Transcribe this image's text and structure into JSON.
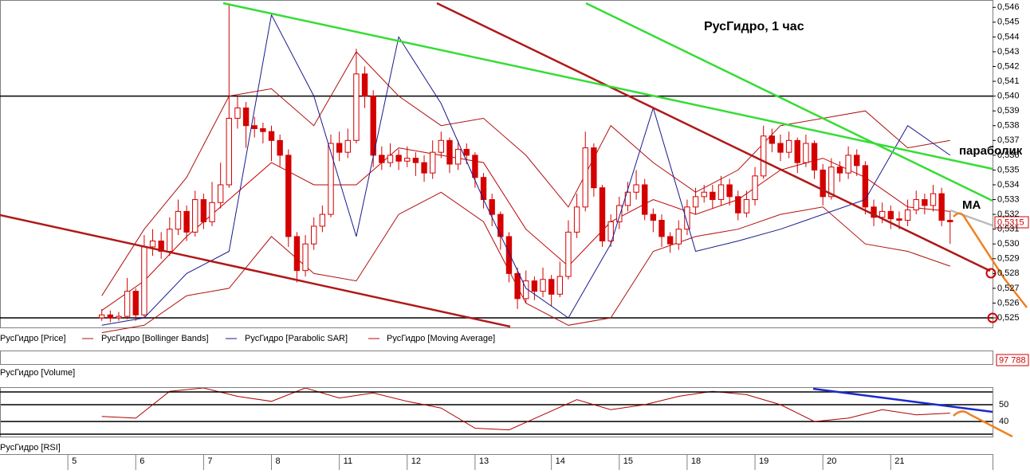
{
  "chart_data": [
    {
      "type": "candlestick",
      "title": "РусГидро,  1 час",
      "name": "РусГидро [Price]",
      "color": "#d40000",
      "annotations": [
        "параболик",
        "МА"
      ],
      "last_price": {
        "value": 0.5315,
        "label": "0,5315"
      },
      "levels": [
        0.54,
        0.525
      ],
      "xlim": [
        -12,
        105
      ],
      "ylim": [
        0.5243,
        0.5465
      ],
      "xticks": [
        {
          "value": -4,
          "label": "5"
        },
        {
          "value": 4,
          "label": "6"
        },
        {
          "value": 12,
          "label": "7"
        },
        {
          "value": 20,
          "label": "8"
        },
        {
          "value": 28,
          "label": "11"
        },
        {
          "value": 36,
          "label": "12"
        },
        {
          "value": 44,
          "label": "13"
        },
        {
          "value": 53,
          "label": "14"
        },
        {
          "value": 61,
          "label": "15"
        },
        {
          "value": 69,
          "label": "18"
        },
        {
          "value": 77,
          "label": "19"
        },
        {
          "value": 85,
          "label": "20"
        },
        {
          "value": 93,
          "label": "21"
        }
      ],
      "yticks": [
        {
          "value": 0.546,
          "label": "0,546"
        },
        {
          "value": 0.545,
          "label": "0,545"
        },
        {
          "value": 0.544,
          "label": "0,544"
        },
        {
          "value": 0.543,
          "label": "0,543"
        },
        {
          "value": 0.542,
          "label": "0,542"
        },
        {
          "value": 0.541,
          "label": "0,541"
        },
        {
          "value": 0.54,
          "label": "0,540"
        },
        {
          "value": 0.539,
          "label": "0,539"
        },
        {
          "value": 0.538,
          "label": "0,538"
        },
        {
          "value": 0.537,
          "label": "0,537"
        },
        {
          "value": 0.536,
          "label": "0,536"
        },
        {
          "value": 0.535,
          "label": "0,535"
        },
        {
          "value": 0.534,
          "label": "0,534"
        },
        {
          "value": 0.533,
          "label": "0,533"
        },
        {
          "value": 0.532,
          "label": "0,532"
        },
        {
          "value": 0.531,
          "label": "0,531"
        },
        {
          "value": 0.53,
          "label": "0,530"
        },
        {
          "value": 0.529,
          "label": "0,529"
        },
        {
          "value": 0.528,
          "label": "0,528"
        },
        {
          "value": 0.527,
          "label": "0,527"
        },
        {
          "value": 0.526,
          "label": "0,526"
        },
        {
          "value": 0.525,
          "label": "0,525"
        }
      ],
      "x": [
        0,
        1,
        2,
        3,
        4,
        5,
        6,
        7,
        8,
        9,
        10,
        11,
        12,
        13,
        14,
        15,
        16,
        17,
        18,
        19,
        20,
        21,
        22,
        23,
        24,
        25,
        26,
        27,
        28,
        29,
        30,
        31,
        32,
        33,
        34,
        35,
        36,
        37,
        38,
        39,
        40,
        41,
        42,
        43,
        44,
        45,
        46,
        47,
        48,
        49,
        50,
        51,
        52,
        53,
        54,
        55,
        56,
        57,
        58,
        59,
        60,
        61,
        62,
        63,
        64,
        65,
        66,
        67,
        68,
        69,
        70,
        71,
        72,
        73,
        74,
        75,
        76,
        77,
        78,
        79,
        80,
        81,
        82,
        83,
        84,
        85,
        86,
        87,
        88,
        89,
        90,
        91,
        92,
        93,
        94,
        95,
        96,
        97,
        98,
        99,
        100
      ],
      "open": [
        0.525,
        0.5252,
        0.525,
        0.5251,
        0.5268,
        0.5252,
        0.5298,
        0.5302,
        0.5295,
        0.531,
        0.5322,
        0.5308,
        0.533,
        0.5315,
        0.5328,
        0.534,
        0.5385,
        0.5392,
        0.538,
        0.5378,
        0.5376,
        0.537,
        0.536,
        0.5305,
        0.5282,
        0.53,
        0.5312,
        0.532,
        0.5368,
        0.5362,
        0.537,
        0.5415,
        0.54,
        0.536,
        0.5355,
        0.536,
        0.5356,
        0.5358,
        0.5355,
        0.5348,
        0.5362,
        0.537,
        0.5354,
        0.5364,
        0.536,
        0.5345,
        0.533,
        0.532,
        0.5305,
        0.528,
        0.5263,
        0.5275,
        0.5268,
        0.5276,
        0.5266,
        0.5278,
        0.5308,
        0.5325,
        0.5365,
        0.5338,
        0.5302,
        0.5315,
        0.5326,
        0.5335,
        0.534,
        0.532,
        0.5316,
        0.5305,
        0.53,
        0.531,
        0.5325,
        0.5332,
        0.5335,
        0.533,
        0.534,
        0.5332,
        0.5321,
        0.533,
        0.5346,
        0.5373,
        0.5368,
        0.5362,
        0.537,
        0.5355,
        0.5368,
        0.535,
        0.5332,
        0.5352,
        0.5348,
        0.536,
        0.5353,
        0.5325,
        0.5318,
        0.5322,
        0.5317,
        0.5316,
        0.5323,
        0.533,
        0.5326,
        0.5334,
        0.5316
      ],
      "high": [
        0.5256,
        0.5255,
        0.5254,
        0.5277,
        0.527,
        0.5306,
        0.531,
        0.5308,
        0.5318,
        0.533,
        0.5326,
        0.5336,
        0.5334,
        0.5342,
        0.5355,
        0.5462,
        0.54,
        0.5396,
        0.5386,
        0.5382,
        0.538,
        0.5374,
        0.5364,
        0.5308,
        0.5306,
        0.5318,
        0.5326,
        0.5374,
        0.5376,
        0.5378,
        0.5432,
        0.542,
        0.5404,
        0.5366,
        0.5368,
        0.5364,
        0.5366,
        0.5362,
        0.536,
        0.537,
        0.5376,
        0.5372,
        0.537,
        0.5368,
        0.5362,
        0.5348,
        0.5334,
        0.5322,
        0.5308,
        0.5284,
        0.5282,
        0.5278,
        0.5284,
        0.5279,
        0.5288,
        0.5316,
        0.5334,
        0.5376,
        0.5368,
        0.534,
        0.532,
        0.5332,
        0.5342,
        0.535,
        0.5344,
        0.5324,
        0.532,
        0.5308,
        0.5316,
        0.533,
        0.5338,
        0.534,
        0.534,
        0.5346,
        0.5344,
        0.5336,
        0.5336,
        0.5352,
        0.538,
        0.5378,
        0.5374,
        0.5376,
        0.5372,
        0.5374,
        0.537,
        0.5354,
        0.5358,
        0.5356,
        0.5366,
        0.5364,
        0.5356,
        0.533,
        0.5328,
        0.5326,
        0.5322,
        0.533,
        0.5336,
        0.5334,
        0.534,
        0.5338,
        0.5322
      ],
      "low": [
        0.5248,
        0.5247,
        0.5248,
        0.5249,
        0.5248,
        0.525,
        0.5292,
        0.529,
        0.5292,
        0.5306,
        0.5302,
        0.5305,
        0.531,
        0.5312,
        0.5324,
        0.5338,
        0.5378,
        0.5365,
        0.5372,
        0.5368,
        0.5356,
        0.5352,
        0.5298,
        0.5274,
        0.5278,
        0.5296,
        0.5308,
        0.5318,
        0.5356,
        0.5358,
        0.5368,
        0.5392,
        0.5352,
        0.535,
        0.5352,
        0.535,
        0.5352,
        0.5346,
        0.5342,
        0.5344,
        0.5358,
        0.5348,
        0.535,
        0.5354,
        0.5338,
        0.5324,
        0.5312,
        0.5296,
        0.5274,
        0.5256,
        0.526,
        0.5262,
        0.5264,
        0.5258,
        0.5264,
        0.5276,
        0.5304,
        0.5322,
        0.5332,
        0.5298,
        0.5298,
        0.531,
        0.5322,
        0.533,
        0.5316,
        0.5308,
        0.5298,
        0.5294,
        0.5296,
        0.5306,
        0.532,
        0.5328,
        0.5324,
        0.5326,
        0.5326,
        0.5316,
        0.5318,
        0.5326,
        0.5344,
        0.5362,
        0.5356,
        0.5358,
        0.5348,
        0.5352,
        0.5344,
        0.5326,
        0.533,
        0.5342,
        0.5344,
        0.5346,
        0.532,
        0.5312,
        0.5314,
        0.531,
        0.531,
        0.5312,
        0.532,
        0.532,
        0.5322,
        0.5312,
        0.53
      ],
      "close": [
        0.5252,
        0.525,
        0.5251,
        0.5268,
        0.5252,
        0.5298,
        0.5302,
        0.5295,
        0.531,
        0.5322,
        0.5308,
        0.533,
        0.5315,
        0.5328,
        0.534,
        0.5385,
        0.5392,
        0.538,
        0.5378,
        0.5376,
        0.537,
        0.536,
        0.5305,
        0.5282,
        0.53,
        0.5312,
        0.532,
        0.5368,
        0.5362,
        0.537,
        0.5415,
        0.54,
        0.536,
        0.5355,
        0.536,
        0.5356,
        0.5358,
        0.5355,
        0.5348,
        0.5362,
        0.537,
        0.5354,
        0.5364,
        0.536,
        0.5345,
        0.533,
        0.532,
        0.5305,
        0.528,
        0.5263,
        0.5275,
        0.5268,
        0.5276,
        0.5266,
        0.5278,
        0.5308,
        0.5325,
        0.5365,
        0.5338,
        0.5302,
        0.5315,
        0.5326,
        0.5335,
        0.534,
        0.532,
        0.5316,
        0.5305,
        0.53,
        0.531,
        0.5325,
        0.5332,
        0.5335,
        0.533,
        0.534,
        0.5332,
        0.5321,
        0.533,
        0.5346,
        0.5373,
        0.5368,
        0.5362,
        0.537,
        0.5355,
        0.5368,
        0.535,
        0.5332,
        0.5352,
        0.5348,
        0.536,
        0.5353,
        0.5325,
        0.5318,
        0.5322,
        0.5317,
        0.5316,
        0.5323,
        0.533,
        0.5326,
        0.5334,
        0.5316,
        0.5315
      ],
      "series": [
        {
          "name": "РусГидро [Bollinger Bands]",
          "color": "#b01010",
          "x": [
            0,
            5,
            10,
            15,
            20,
            25,
            30,
            35,
            40,
            45,
            50,
            55,
            60,
            65,
            70,
            75,
            80,
            85,
            90,
            95,
            100
          ],
          "upper": [
            0.5265,
            0.531,
            0.5345,
            0.54,
            0.5405,
            0.538,
            0.543,
            0.54,
            0.538,
            0.5385,
            0.536,
            0.5325,
            0.538,
            0.5355,
            0.5335,
            0.535,
            0.538,
            0.5385,
            0.539,
            0.5365,
            0.537
          ],
          "lower": [
            0.524,
            0.5245,
            0.5265,
            0.527,
            0.5305,
            0.528,
            0.5275,
            0.532,
            0.5335,
            0.5315,
            0.526,
            0.5245,
            0.525,
            0.5295,
            0.5305,
            0.531,
            0.532,
            0.5325,
            0.53,
            0.5295,
            0.5285
          ]
        },
        {
          "name": "РусГидро [Parabolic SAR]",
          "color": "#1a1a8c",
          "x": [
            0,
            5,
            10,
            15,
            20,
            25,
            30,
            35,
            40,
            45,
            50,
            55,
            60,
            65,
            70,
            75,
            80,
            85,
            90,
            95,
            100
          ],
          "values": [
            0.5245,
            0.525,
            0.528,
            0.5295,
            0.5455,
            0.54,
            0.5305,
            0.544,
            0.5395,
            0.533,
            0.527,
            0.525,
            0.53,
            0.5392,
            0.5295,
            0.5302,
            0.531,
            0.532,
            0.533,
            0.538,
            0.536
          ]
        },
        {
          "name": "РусГидро [Moving Average]",
          "color": "#c00000",
          "x": [
            0,
            5,
            10,
            15,
            20,
            25,
            30,
            35,
            40,
            45,
            50,
            55,
            60,
            65,
            70,
            75,
            80,
            85,
            90,
            95,
            100
          ],
          "values": [
            0.5255,
            0.5275,
            0.5305,
            0.533,
            0.5355,
            0.534,
            0.534,
            0.5365,
            0.536,
            0.5355,
            0.531,
            0.5285,
            0.5315,
            0.533,
            0.532,
            0.533,
            0.535,
            0.5358,
            0.5345,
            0.5325,
            0.5322
          ]
        }
      ]
    },
    {
      "type": "volume",
      "title": "РусГидро [Volume]",
      "last_value": {
        "value": 97788,
        "label": "97 788"
      }
    },
    {
      "type": "line",
      "title": "РусГидро [RSI]",
      "color": "#b00000",
      "ylim": [
        31,
        60
      ],
      "yticks": [
        50,
        40
      ],
      "xlim": [
        -12,
        105
      ],
      "x": [
        0,
        4,
        8,
        12,
        16,
        20,
        24,
        28,
        32,
        36,
        40,
        44,
        48,
        52,
        56,
        60,
        64,
        68,
        72,
        76,
        80,
        84,
        88,
        92,
        96,
        100
      ],
      "values": [
        43,
        42,
        58,
        60,
        55,
        52,
        60,
        54,
        57,
        52,
        48,
        36,
        35,
        44,
        53,
        47,
        50,
        55,
        58,
        56,
        50,
        40,
        42,
        47,
        44,
        45
      ]
    }
  ]
}
